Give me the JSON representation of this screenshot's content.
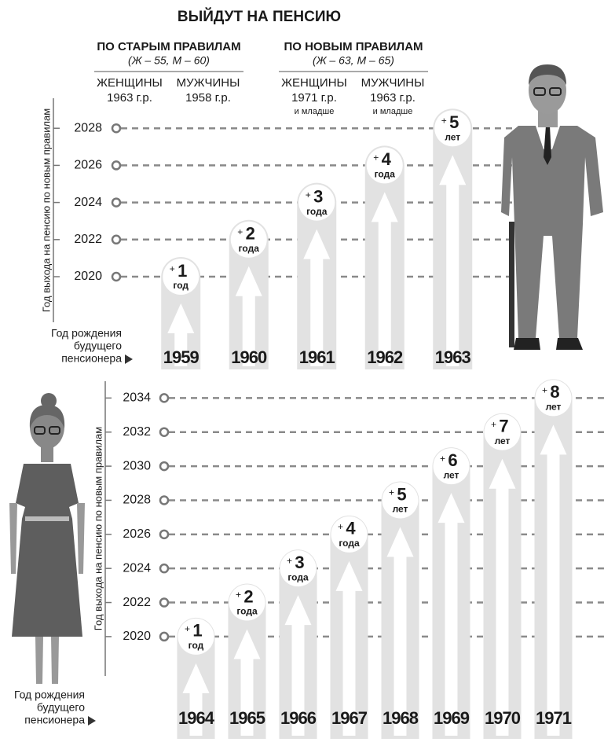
{
  "chart_data": [
    {
      "type": "bar",
      "title": "ВЫЙДУТ НА ПЕНСИЮ",
      "rules": [
        {
          "title": "ПО СТАРЫМ ПРАВИЛАМ",
          "ages": "(Ж – 55, М – 60)",
          "groups": [
            {
              "sex": "ЖЕНЩИНЫ",
              "born": "1963 г.р."
            },
            {
              "sex": "МУЖЧИНЫ",
              "born": "1958 г.р."
            }
          ]
        },
        {
          "title": "ПО НОВЫМ ПРАВИЛАМ",
          "ages": "(Ж – 63, М – 65)",
          "groups": [
            {
              "sex": "ЖЕНЩИНЫ",
              "born": "1971 г.р.",
              "note": "и младше"
            },
            {
              "sex": "МУЖЧИНЫ",
              "born": "1963 г.р.",
              "note": "и младше"
            }
          ]
        }
      ],
      "ylabel": "Год выхода на пенсию по новым правилам",
      "xlabel": [
        "Год рождения",
        "будущего",
        "пенсионера"
      ],
      "categories": [
        "1959",
        "1960",
        "1961",
        "1962",
        "1963"
      ],
      "values": [
        2020,
        2022,
        2024,
        2026,
        2028
      ],
      "increments": [
        {
          "sign": "+",
          "value": 1,
          "unit": "год"
        },
        {
          "sign": "+",
          "value": 2,
          "unit": "года"
        },
        {
          "sign": "+",
          "value": 3,
          "unit": "года"
        },
        {
          "sign": "+",
          "value": 4,
          "unit": "года"
        },
        {
          "sign": "+",
          "value": 5,
          "unit": "лет"
        }
      ],
      "ylim": [
        2015,
        2030
      ],
      "yticks": [
        2020,
        2022,
        2024,
        2026,
        2028
      ],
      "grid": true,
      "color": "#e2e2e2"
    },
    {
      "type": "bar",
      "ylabel": "Год выхода на пенсию по новым правилам",
      "xlabel": [
        "Год рождения",
        "будущего",
        "пенсионера"
      ],
      "categories": [
        "1964",
        "1965",
        "1966",
        "1967",
        "1968",
        "1969",
        "1970",
        "1971"
      ],
      "values": [
        2020,
        2022,
        2024,
        2026,
        2028,
        2030,
        2032,
        2034
      ],
      "increments": [
        {
          "sign": "+",
          "value": 1,
          "unit": "год"
        },
        {
          "sign": "+",
          "value": 2,
          "unit": "года"
        },
        {
          "sign": "+",
          "value": 3,
          "unit": "года"
        },
        {
          "sign": "+",
          "value": 4,
          "unit": "года"
        },
        {
          "sign": "+",
          "value": 5,
          "unit": "лет"
        },
        {
          "sign": "+",
          "value": 6,
          "unit": "лет"
        },
        {
          "sign": "+",
          "value": 7,
          "unit": "лет"
        },
        {
          "sign": "+",
          "value": 8,
          "unit": "лет"
        }
      ],
      "ylim": [
        2014,
        2036
      ],
      "yticks": [
        2020,
        2022,
        2024,
        2026,
        2028,
        2030,
        2032,
        2034
      ],
      "grid": true,
      "color": "#e2e2e2"
    }
  ]
}
